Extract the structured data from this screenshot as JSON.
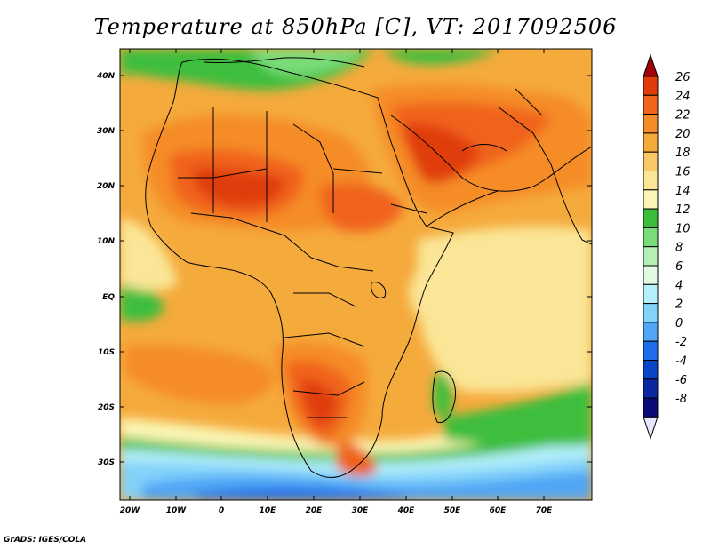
{
  "title": "Temperature at 850hPa [C], VT: 2017092506",
  "credit": "GrADS: IGES/COLA",
  "axes": {
    "lat_labels": [
      "40N",
      "30N",
      "20N",
      "10N",
      "EQ",
      "10S",
      "20S",
      "30S"
    ],
    "lon_labels": [
      "20W",
      "10W",
      "0",
      "10E",
      "20E",
      "30E",
      "40E",
      "50E",
      "60E",
      "70E"
    ]
  },
  "colorbar": {
    "levels": [
      "26",
      "24",
      "22",
      "20",
      "18",
      "16",
      "14",
      "12",
      "10",
      "8",
      "6",
      "4",
      "2",
      "0",
      "-2",
      "-4",
      "-6",
      "-8"
    ],
    "colors": [
      "#a0000a",
      "#e03c0a",
      "#f0641e",
      "#f58c28",
      "#f5aa3c",
      "#fac864",
      "#fae696",
      "#faf5b4",
      "#3cbe3c",
      "#78dc78",
      "#b4f0b4",
      "#e1fae1",
      "#b4f0fa",
      "#82d2fa",
      "#50a5f5",
      "#1e6eeb",
      "#0a46c8",
      "#0a28a0",
      "#0a0a78",
      "#e6e6ff"
    ]
  }
}
